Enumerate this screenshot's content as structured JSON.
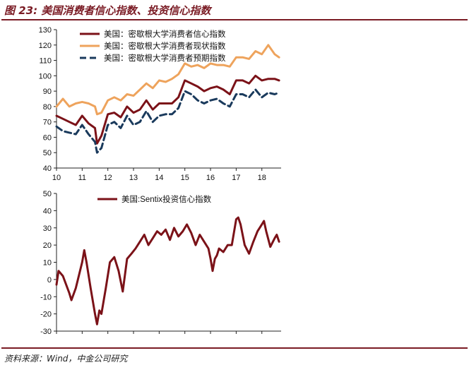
{
  "figure": {
    "title": "图 23: 美国消费者信心指数、投资信心指数",
    "source": "资料来源：Wind，中金公司研究"
  },
  "colors": {
    "brand": "#7a1b24",
    "sentiment": "#7b1218",
    "current": "#eea35c",
    "expectations": "#1a3a5c"
  },
  "chart_data": [
    {
      "type": "line",
      "ylim": [
        40,
        130
      ],
      "yticks": [
        40,
        50,
        60,
        70,
        80,
        90,
        100,
        110,
        120,
        130
      ],
      "xlim": [
        2010.0,
        2018.75
      ],
      "xticks": [
        {
          "v": 2010,
          "label": "10"
        },
        {
          "v": 2011,
          "label": "11"
        },
        {
          "v": 2012,
          "label": "12"
        },
        {
          "v": 2013,
          "label": "13"
        },
        {
          "v": 2014,
          "label": "14"
        },
        {
          "v": 2015,
          "label": "15"
        },
        {
          "v": 2016,
          "label": "16"
        },
        {
          "v": 2017,
          "label": "17"
        },
        {
          "v": 2018,
          "label": "18"
        }
      ],
      "legend_position": "top-left",
      "series": [
        {
          "name": "美国：密歇根大学消费者信心指数",
          "color": "#7b1218",
          "style": "solid",
          "x": [
            2010.0,
            2010.25,
            2010.5,
            2010.75,
            2011.0,
            2011.25,
            2011.5,
            2011.58,
            2011.75,
            2012.0,
            2012.25,
            2012.5,
            2012.75,
            2013.0,
            2013.25,
            2013.5,
            2013.75,
            2014.0,
            2014.25,
            2014.5,
            2014.75,
            2015.0,
            2015.25,
            2015.5,
            2015.75,
            2016.0,
            2016.25,
            2016.5,
            2016.75,
            2017.0,
            2017.25,
            2017.5,
            2017.75,
            2018.0,
            2018.25,
            2018.5,
            2018.67
          ],
          "y": [
            74,
            72,
            70,
            68,
            74,
            69,
            66,
            56,
            61,
            75,
            76,
            73,
            80,
            76,
            78,
            84,
            78,
            82,
            82,
            82,
            86,
            97,
            95,
            93,
            90,
            92,
            93,
            91,
            88,
            97,
            97,
            95,
            100,
            97,
            98,
            98,
            97
          ]
        },
        {
          "name": "美国：密歇根大学消费者现状指数",
          "color": "#eea35c",
          "style": "solid",
          "x": [
            2010.0,
            2010.25,
            2010.5,
            2010.75,
            2011.0,
            2011.25,
            2011.5,
            2011.58,
            2011.75,
            2012.0,
            2012.25,
            2012.5,
            2012.75,
            2013.0,
            2013.25,
            2013.5,
            2013.75,
            2014.0,
            2014.25,
            2014.5,
            2014.75,
            2015.0,
            2015.25,
            2015.5,
            2015.75,
            2016.0,
            2016.25,
            2016.5,
            2016.75,
            2017.0,
            2017.25,
            2017.5,
            2017.75,
            2018.0,
            2018.25,
            2018.5,
            2018.67
          ],
          "y": [
            80,
            85,
            80,
            82,
            83,
            82,
            80,
            75,
            76,
            84,
            86,
            84,
            88,
            87,
            91,
            95,
            92,
            97,
            96,
            98,
            101,
            108,
            106,
            107,
            105,
            108,
            107,
            107,
            106,
            112,
            112,
            111,
            116,
            114,
            120,
            114,
            112
          ]
        },
        {
          "name": "美国：密歇根大学消费者预期指数",
          "color": "#1a3a5c",
          "style": "dashed",
          "x": [
            2010.0,
            2010.25,
            2010.5,
            2010.75,
            2011.0,
            2011.25,
            2011.5,
            2011.58,
            2011.75,
            2012.0,
            2012.25,
            2012.5,
            2012.75,
            2013.0,
            2013.25,
            2013.5,
            2013.75,
            2014.0,
            2014.25,
            2014.5,
            2014.75,
            2015.0,
            2015.25,
            2015.5,
            2015.75,
            2016.0,
            2016.25,
            2016.5,
            2016.75,
            2017.0,
            2017.25,
            2017.5,
            2017.75,
            2018.0,
            2018.25,
            2018.5,
            2018.67
          ],
          "y": [
            67,
            64,
            63,
            62,
            68,
            62,
            57,
            50,
            53,
            68,
            70,
            66,
            74,
            68,
            70,
            77,
            70,
            74,
            75,
            75,
            79,
            90,
            88,
            84,
            82,
            84,
            85,
            82,
            80,
            88,
            88,
            86,
            91,
            86,
            89,
            88,
            89
          ]
        }
      ]
    },
    {
      "type": "line",
      "ylim": [
        -30,
        50
      ],
      "yticks": [
        -30,
        -20,
        -10,
        0,
        10,
        20,
        30,
        40,
        50
      ],
      "xlim": [
        2010.0,
        2018.75
      ],
      "xticks": [
        {
          "v": 2010,
          "label": "10"
        },
        {
          "v": 2011,
          "label": "11"
        },
        {
          "v": 2012,
          "label": "12"
        },
        {
          "v": 2013,
          "label": "13"
        },
        {
          "v": 2014,
          "label": "14"
        },
        {
          "v": 2015,
          "label": "15"
        },
        {
          "v": 2016,
          "label": "16"
        },
        {
          "v": 2017,
          "label": "17"
        },
        {
          "v": 2018,
          "label": "18"
        }
      ],
      "legend_position": "top-center",
      "series": [
        {
          "name": "美国:Sentix投资信心指数",
          "color": "#7b1218",
          "style": "solid",
          "x": [
            2010.0,
            2010.08,
            2010.25,
            2010.5,
            2010.58,
            2010.75,
            2011.0,
            2011.08,
            2011.17,
            2011.33,
            2011.5,
            2011.58,
            2011.67,
            2011.75,
            2011.92,
            2012.08,
            2012.25,
            2012.42,
            2012.58,
            2012.75,
            2012.92,
            2013.08,
            2013.25,
            2013.42,
            2013.58,
            2013.75,
            2013.92,
            2014.08,
            2014.25,
            2014.42,
            2014.58,
            2014.75,
            2014.92,
            2015.08,
            2015.25,
            2015.42,
            2015.58,
            2015.75,
            2015.92,
            2016.0,
            2016.08,
            2016.17,
            2016.25,
            2016.33,
            2016.5,
            2016.67,
            2016.83,
            2017.0,
            2017.08,
            2017.17,
            2017.33,
            2017.5,
            2017.67,
            2017.83,
            2018.0,
            2018.08,
            2018.17,
            2018.33,
            2018.5,
            2018.58,
            2018.67
          ],
          "y": [
            -3,
            5,
            2,
            -8,
            -12,
            -5,
            10,
            17,
            10,
            -5,
            -20,
            -26,
            -18,
            -20,
            -5,
            10,
            13,
            5,
            -7,
            12,
            15,
            18,
            22,
            26,
            20,
            24,
            28,
            26,
            29,
            23,
            30,
            25,
            28,
            32,
            27,
            20,
            26,
            22,
            18,
            12,
            5,
            12,
            14,
            18,
            16,
            20,
            20,
            35,
            36,
            32,
            20,
            15,
            22,
            28,
            32,
            34,
            28,
            19,
            24,
            26,
            22
          ]
        }
      ]
    }
  ]
}
